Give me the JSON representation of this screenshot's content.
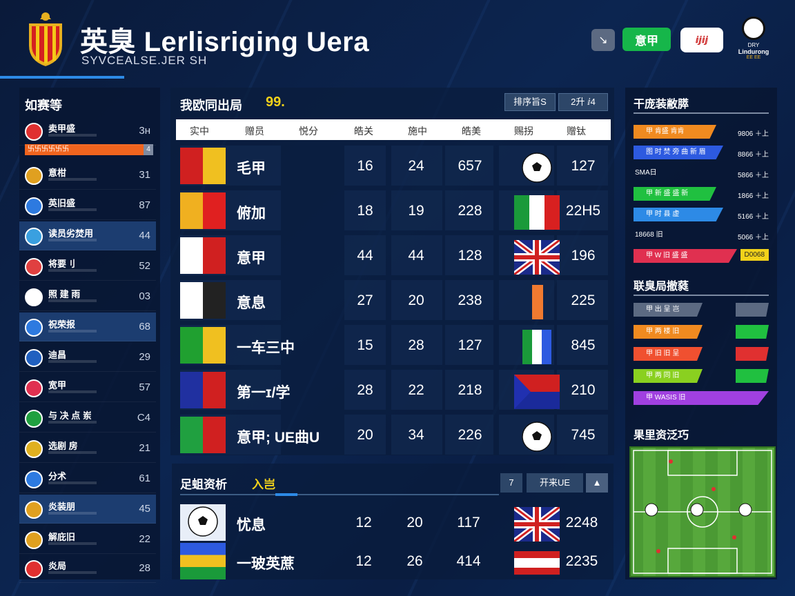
{
  "header": {
    "title": "英臭 Lerlisriging Uera",
    "subtitle": "SYVCEALSE.JER SH",
    "btn_tools": "↘",
    "btn_green": "意甲",
    "btn_white": "ⅈⅉⅈⅉ",
    "logo_line1": "DRY",
    "logo_line2": "Lindurong",
    "logo_line3": "EE EE"
  },
  "left_panel": {
    "title": "如赛等",
    "highlight_bar": "卐卐卐卐卐卐",
    "highlight_bar_val": "4",
    "rows": [
      {
        "name": "卖甲盛",
        "value": "3ʜ",
        "icon_color": "#e03030"
      },
      {
        "name": "意柑",
        "value": "31",
        "icon_color": "#e0a020"
      },
      {
        "name": "英旧盛",
        "value": "87",
        "icon_color": "#2d7ae0"
      },
      {
        "name": "读员劣焚用",
        "value": "44",
        "icon_color": "#3aa0e0"
      },
      {
        "name": "将要刂",
        "value": "52",
        "icon_color": "#e04040"
      },
      {
        "name": "照 建 雨",
        "value": "03",
        "icon_color": "#ffffff"
      },
      {
        "name": "祝荣报",
        "value": "68",
        "icon_color": "#2d7ae0"
      },
      {
        "name": "迪昌",
        "value": "29",
        "icon_color": "#2060c0"
      },
      {
        "name": "宽甲",
        "value": "57",
        "icon_color": "#e03050"
      },
      {
        "name": "与 决 点 岽",
        "value": "C4",
        "icon_color": "#20a040"
      },
      {
        "name": "选剧 房",
        "value": "21",
        "icon_color": "#e0b020"
      },
      {
        "name": "分术",
        "value": "61",
        "icon_color": "#2d7ae0"
      },
      {
        "name": "炎装朋",
        "value": "45",
        "icon_color": "#e0a020"
      },
      {
        "name": "解庇旧",
        "value": "22",
        "icon_color": "#e0a020"
      },
      {
        "name": "炎局",
        "value": "28",
        "icon_color": "#e03030"
      }
    ]
  },
  "main_table": {
    "title": "我欧同出局",
    "badge": "99.",
    "btn1": "排序旨S",
    "btn2": "2升 ⅈ4",
    "columns": [
      "实中",
      "赠员",
      "悦分",
      "皓关",
      "施中",
      "皓美",
      "赐拐",
      "赠钛"
    ],
    "rows": [
      {
        "name": "毛甲",
        "a": "16",
        "b": "24",
        "c": "657",
        "d": "127",
        "flag_colors": [
          "#d02020",
          "#f0c020"
        ],
        "img": "ball"
      },
      {
        "name": "俯加",
        "a": "18",
        "b": "19",
        "c": "228",
        "d": "22H5",
        "flag_colors": [
          "#f0b020",
          "#e02020"
        ],
        "img": "italy"
      },
      {
        "name": "意甲",
        "a": "44",
        "b": "44",
        "c": "128",
        "d": "196",
        "flag_colors": [
          "#ffffff",
          "#d02020"
        ],
        "img": "uk"
      },
      {
        "name": "意息",
        "a": "27",
        "b": "20",
        "c": "238",
        "d": "225",
        "flag_colors": [
          "#ffffff",
          "#222222"
        ],
        "img": "orange"
      },
      {
        "name": "一车三中",
        "a": "15",
        "b": "28",
        "c": "127",
        "d": "845",
        "flag_colors": [
          "#20a030",
          "#f0c020"
        ],
        "img": "green"
      },
      {
        "name": "第一ɪ/学",
        "a": "28",
        "b": "22",
        "c": "218",
        "d": "210",
        "flag_colors": [
          "#2030a0",
          "#d02020"
        ],
        "img": "blue"
      },
      {
        "name": "意甲; UE曲U",
        "a": "20",
        "b": "34",
        "c": "226",
        "d": "745",
        "flag_colors": [
          "#20a040",
          "#d02020"
        ],
        "img": "ball"
      }
    ]
  },
  "second_table": {
    "title": "足蛆资析",
    "tab": "入岂",
    "btn1": "7",
    "btn2": "开来UE",
    "btn3": "▲",
    "rows": [
      {
        "name": "忧息",
        "a": "12",
        "b": "20",
        "c": "117",
        "d": "2248",
        "img": "uk"
      },
      {
        "name": "一玻英蔗",
        "a": "12",
        "b": "26",
        "c": "414",
        "d": "2235",
        "img": "red"
      }
    ]
  },
  "right_panel": {
    "title1": "干庞装敝膵",
    "stats": [
      {
        "label": "甲 肯盛 肯肯",
        "value": "9806 ＋上",
        "color": "#f08a20"
      },
      {
        "label": "图 时 焚 旁 曲 新 眉",
        "value": "8866 ＋上",
        "color": "#2d5ae0"
      },
      {
        "label": "SMA日",
        "value": "5866 ＋上",
        "color": ""
      },
      {
        "label": "甲 新 盛 盛 新",
        "value": "1866 ＋上",
        "color": "#20c040"
      },
      {
        "label": "甲 时 县 虚",
        "value": "5166 ＋上",
        "color": "#2d8ae6"
      },
      {
        "label": "18668 旧",
        "value": "5066 ＋上",
        "color": ""
      },
      {
        "label": "甲 W 旧 盛 盛",
        "value": "D0068",
        "color": "#e03050"
      }
    ],
    "title2": "联臭局撤蕤",
    "bars": [
      {
        "label": "甲 出 呈 岂",
        "color": "#5c6a82"
      },
      {
        "label": "甲 两 楼 旧",
        "color": "#f08a20"
      },
      {
        "label": "甲 旧 旧 呈",
        "color": "#f05030"
      },
      {
        "label": "甲 两 同 旧",
        "color": "#8ad020"
      },
      {
        "label": "甲 WASIS 旧",
        "color": "#a040e0"
      }
    ],
    "title3": "果里资泛巧"
  }
}
